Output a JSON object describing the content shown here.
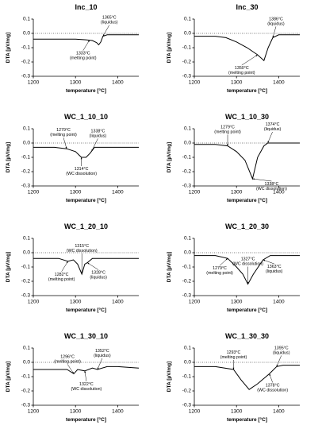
{
  "chart_data": [
    {
      "type": "line",
      "title": "Inc_10",
      "x_label": "temperature [°C]",
      "y_label": "DTA [µV/mg]",
      "color": "#000000",
      "x": [
        1200,
        1250,
        1300,
        1325,
        1340,
        1350,
        1355,
        1360,
        1365,
        1375,
        1400,
        1450
      ],
      "values": [
        -0.04,
        -0.04,
        -0.04,
        -0.045,
        -0.05,
        -0.065,
        -0.08,
        -0.06,
        -0.02,
        -0.01,
        -0.01,
        -0.01
      ],
      "xlim": [
        1200,
        1450
      ],
      "xticks": [
        1200,
        1300,
        1400
      ],
      "ylim": [
        -0.3,
        0.1
      ],
      "yticks": [
        0.1,
        {
          "value": 0,
          "label": "0.0"
        },
        -0.1,
        -0.2,
        -0.3
      ],
      "annotations": [
        {
          "x": 1365,
          "label": "1365°C",
          "note": "(liquidus)"
        },
        {
          "x": 1333,
          "label": "1333°C",
          "note": "(melting point)"
        }
      ]
    },
    {
      "type": "line",
      "title": "Inc_30",
      "x_label": "temperature [°C]",
      "y_label": "DTA [µV/mg]",
      "color": "#000000",
      "x": [
        1200,
        1250,
        1275,
        1300,
        1325,
        1350,
        1365,
        1375,
        1386,
        1400,
        1450
      ],
      "values": [
        -0.02,
        -0.02,
        -0.03,
        -0.06,
        -0.1,
        -0.15,
        -0.19,
        -0.1,
        -0.03,
        -0.01,
        -0.01
      ],
      "xlim": [
        1200,
        1450
      ],
      "xticks": [
        1200,
        1300,
        1400
      ],
      "ylim": [
        -0.3,
        0.1
      ],
      "yticks": [
        0.1,
        {
          "value": 0,
          "label": "0.0"
        },
        -0.1,
        -0.2,
        -0.3
      ],
      "annotations": [
        {
          "x": 1386,
          "label": "1386°C",
          "note": "(liquidus)"
        },
        {
          "x": 1350,
          "label": "1350°C",
          "note": "(melting point)"
        }
      ]
    },
    {
      "type": "line",
      "title": "WC_1_10_10",
      "x_label": "temperature [°C]",
      "y_label": "DTA [µV/mg]",
      "color": "#000000",
      "x": [
        1200,
        1250,
        1279,
        1300,
        1314,
        1325,
        1335,
        1345,
        1375,
        1400,
        1450
      ],
      "values": [
        -0.03,
        -0.03,
        -0.04,
        -0.06,
        -0.1,
        -0.1,
        -0.07,
        -0.03,
        -0.03,
        -0.03,
        -0.03
      ],
      "xlim": [
        1200,
        1450
      ],
      "xticks": [
        1200,
        1300,
        1400
      ],
      "ylim": [
        -0.3,
        0.1
      ],
      "yticks": [
        0.1,
        {
          "value": 0,
          "label": "0.0"
        },
        -0.1,
        -0.2,
        -0.3
      ],
      "annotations": [
        {
          "x": 1279,
          "label": "1279°C",
          "note": "(melting point)"
        },
        {
          "x": 1338,
          "label": "1338°C",
          "note": "(liquidus)"
        },
        {
          "x": 1314,
          "label": "1314°C",
          "note": "(WC dissolution)"
        }
      ]
    },
    {
      "type": "line",
      "title": "WC_1_10_30",
      "x_label": "temperature [°C]",
      "y_label": "DTA [µV/mg]",
      "color": "#000000",
      "x": [
        1200,
        1250,
        1279,
        1300,
        1320,
        1338,
        1350,
        1365,
        1374,
        1400,
        1450
      ],
      "values": [
        -0.01,
        -0.01,
        -0.02,
        -0.06,
        -0.12,
        -0.25,
        -0.1,
        -0.02,
        0,
        0,
        0
      ],
      "xlim": [
        1200,
        1450
      ],
      "xticks": [
        1200,
        1300,
        1400
      ],
      "ylim": [
        -0.3,
        0.1
      ],
      "yticks": [
        0.1,
        {
          "value": 0,
          "label": "0.0"
        },
        -0.1,
        -0.2,
        -0.3
      ],
      "annotations": [
        {
          "x": 1279,
          "label": "1279°C",
          "note": "(melting point)"
        },
        {
          "x": 1374,
          "label": "1374°C",
          "note": "(liquidus)"
        },
        {
          "x": 1338,
          "label": "1338°C",
          "note": "(WC dissolution)"
        }
      ]
    },
    {
      "type": "line",
      "title": "WC_1_20_10",
      "x_label": "temperature [°C]",
      "y_label": "DTA [µV/mg]",
      "color": "#000000",
      "x": [
        1200,
        1260,
        1282,
        1295,
        1305,
        1315,
        1322,
        1328,
        1340,
        1400,
        1450
      ],
      "values": [
        -0.04,
        -0.04,
        -0.06,
        -0.05,
        -0.08,
        -0.15,
        -0.08,
        -0.07,
        -0.04,
        -0.04,
        -0.04
      ],
      "xlim": [
        1200,
        1450
      ],
      "xticks": [
        1200,
        1300,
        1400
      ],
      "ylim": [
        -0.3,
        0.1
      ],
      "yticks": [
        0.1,
        {
          "value": 0,
          "label": "0.0"
        },
        -0.1,
        -0.2,
        -0.3
      ],
      "annotations": [
        {
          "x": 1315,
          "label": "1315°C",
          "note": "(WC dissolution)"
        },
        {
          "x": 1282,
          "label": "1282°C",
          "note": "(melting point)"
        },
        {
          "x": 1328,
          "label": "1328°C",
          "note": "(liquidus)"
        }
      ]
    },
    {
      "type": "line",
      "title": "WC_1_20_30",
      "x_label": "temperature [°C]",
      "y_label": "DTA [µV/mg]",
      "color": "#000000",
      "x": [
        1200,
        1250,
        1279,
        1300,
        1315,
        1327,
        1340,
        1363,
        1380,
        1400,
        1450
      ],
      "values": [
        -0.02,
        -0.02,
        -0.04,
        -0.1,
        -0.15,
        -0.22,
        -0.15,
        -0.05,
        -0.02,
        -0.02,
        -0.02
      ],
      "xlim": [
        1200,
        1450
      ],
      "xticks": [
        1200,
        1300,
        1400
      ],
      "ylim": [
        -0.3,
        0.1
      ],
      "yticks": [
        0.1,
        {
          "value": 0,
          "label": "0.0"
        },
        -0.1,
        -0.2,
        -0.3
      ],
      "annotations": [
        {
          "x": 1327,
          "label": "1327°C",
          "note": "(WC dissolution)"
        },
        {
          "x": 1279,
          "label": "1279°C",
          "note": "(melting point)"
        },
        {
          "x": 1363,
          "label": "1363°C",
          "note": "(liquidus)"
        }
      ]
    },
    {
      "type": "line",
      "title": "WC_1_30_10",
      "x_label": "temperature [°C]",
      "y_label": "DTA [µV/mg]",
      "color": "#000000",
      "x": [
        1200,
        1280,
        1296,
        1305,
        1322,
        1340,
        1352,
        1375,
        1400,
        1450
      ],
      "values": [
        -0.05,
        -0.05,
        -0.08,
        -0.05,
        -0.06,
        -0.04,
        -0.05,
        -0.03,
        -0.03,
        -0.04
      ],
      "xlim": [
        1200,
        1450
      ],
      "xticks": [
        1200,
        1300,
        1400
      ],
      "ylim": [
        -0.3,
        0.1
      ],
      "yticks": [
        0.1,
        {
          "value": 0,
          "label": "0.0"
        },
        -0.1,
        -0.2,
        -0.3
      ],
      "annotations": [
        {
          "x": 1296,
          "label": "1296°C",
          "note": "(melting point)"
        },
        {
          "x": 1352,
          "label": "1352°C",
          "note": "(liquidus)"
        },
        {
          "x": 1322,
          "label": "1322°C",
          "note": "(WC dissolution)"
        }
      ]
    },
    {
      "type": "line",
      "title": "WC_1_30_30",
      "x_label": "temperature [°C]",
      "y_label": "DTA [µV/mg]",
      "color": "#000000",
      "x": [
        1200,
        1250,
        1293,
        1310,
        1330,
        1350,
        1378,
        1395,
        1410,
        1450
      ],
      "values": [
        -0.03,
        -0.03,
        -0.05,
        -0.12,
        -0.19,
        -0.15,
        -0.08,
        -0.03,
        -0.02,
        -0.02
      ],
      "xlim": [
        1200,
        1450
      ],
      "xticks": [
        1200,
        1300,
        1400
      ],
      "ylim": [
        -0.3,
        0.1
      ],
      "yticks": [
        0.1,
        {
          "value": 0,
          "label": "0.0"
        },
        -0.1,
        -0.2,
        -0.3
      ],
      "annotations": [
        {
          "x": 1293,
          "label": "1293°C",
          "note": "(melting point)"
        },
        {
          "x": 1395,
          "label": "1395°C",
          "note": "(liquidus)"
        },
        {
          "x": 1378,
          "label": "1378°C",
          "note": "(WC dissolution)"
        }
      ]
    }
  ]
}
